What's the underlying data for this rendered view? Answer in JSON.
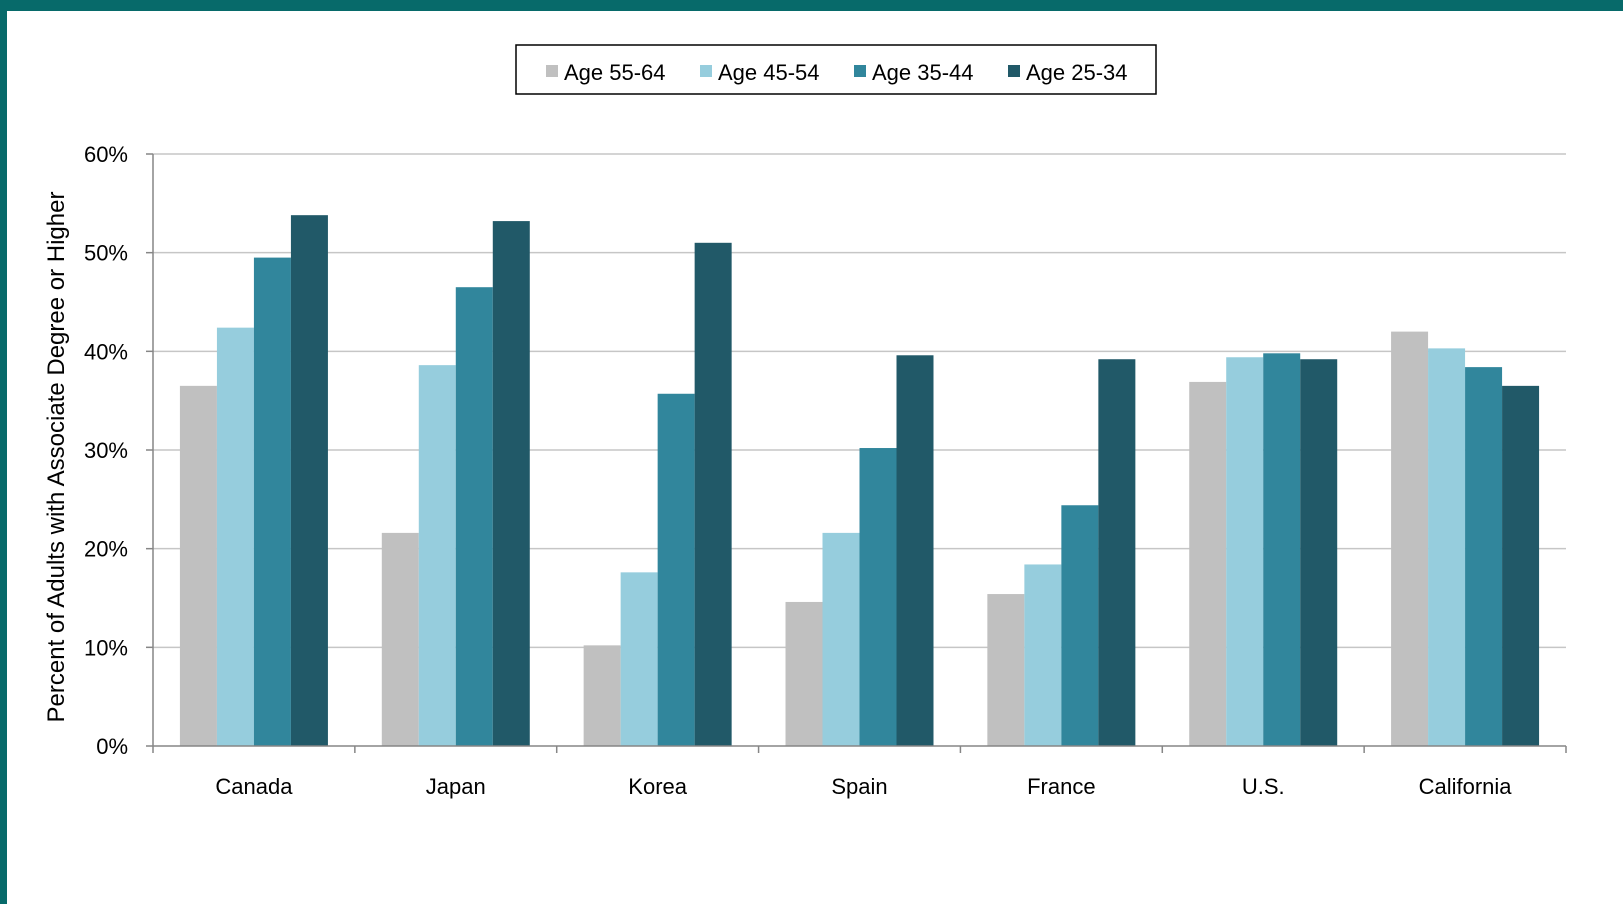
{
  "chart_data": {
    "type": "bar",
    "ylabel": "Percent of Adults with Associate Degree or Higher",
    "ylim": [
      0,
      60
    ],
    "yticks": [
      0,
      10,
      20,
      30,
      40,
      50,
      60
    ],
    "ytick_labels": [
      "0%",
      "10%",
      "20%",
      "30%",
      "40%",
      "50%",
      "60%"
    ],
    "grid": true,
    "legend_position": "top-center",
    "categories": [
      "Canada",
      "Japan",
      "Korea",
      "Spain",
      "France",
      "U.S.",
      "California"
    ],
    "series": [
      {
        "name": "Age 55-64",
        "color": "#c0c0c0",
        "values": [
          36.5,
          21.6,
          10.2,
          14.6,
          15.4,
          36.9,
          42.0
        ]
      },
      {
        "name": "Age 45-54",
        "color": "#96cddd",
        "values": [
          42.4,
          38.6,
          17.6,
          21.6,
          18.4,
          39.4,
          40.3
        ]
      },
      {
        "name": "Age 35-44",
        "color": "#31869c",
        "values": [
          49.5,
          46.5,
          35.7,
          30.2,
          24.4,
          39.8,
          38.4
        ]
      },
      {
        "name": "Age 25-34",
        "color": "#215968",
        "values": [
          53.8,
          53.2,
          51.0,
          39.6,
          39.2,
          39.2,
          36.5
        ]
      }
    ]
  }
}
